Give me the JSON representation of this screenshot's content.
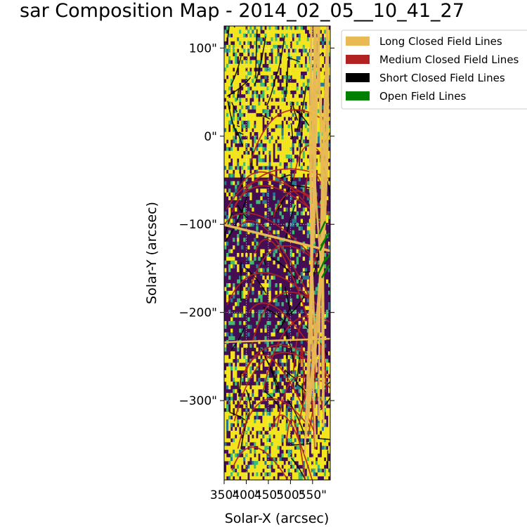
{
  "chart_data": {
    "type": "heatmap",
    "title": "sar Composition Map - 2014_02_05__10_41_27",
    "xlabel": "Solar-X (arcsec)",
    "ylabel": "Solar-Y (arcsec)",
    "xlim": [
      350,
      590
    ],
    "ylim": [
      -390,
      125
    ],
    "x_ticks": [
      350,
      400,
      450,
      500,
      550
    ],
    "x_tick_labels": [
      "350\"",
      "400\"",
      "450\"",
      "500\"",
      "550\""
    ],
    "y_ticks": [
      100,
      0,
      -100,
      -200,
      -300
    ],
    "y_tick_labels": [
      "100\"",
      "0\"",
      "−100\"",
      "−200\"",
      "−300\""
    ],
    "grid": true,
    "colormap": "viridis",
    "legend_position": "outside-right",
    "legend": [
      {
        "label": "Long Closed Field Lines",
        "color": "#e8b955"
      },
      {
        "label": "Medium Closed Field Lines",
        "color": "#b22222"
      },
      {
        "label": "Short Closed Field Lines",
        "color": "#000000"
      },
      {
        "label": "Open Field Lines",
        "color": "#008000"
      }
    ]
  }
}
